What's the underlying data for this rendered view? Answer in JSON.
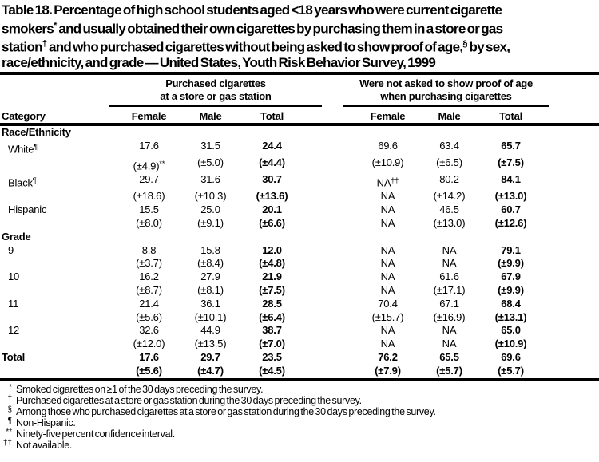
{
  "title": {
    "lines": [
      [
        {
          "t": "Table 18. Percentage of high school students aged <18 years who were current cigarette"
        }
      ],
      [
        {
          "t": "smokers"
        },
        {
          "sup": "*"
        },
        {
          "t": " and usually obtained their own cigarettes by purchasing them in a store or gas"
        }
      ],
      [
        {
          "t": "station"
        },
        {
          "sup": "†"
        },
        {
          "t": " and who purchased cigarettes without being asked to show proof of age,"
        },
        {
          "sup": "§"
        },
        {
          "t": " by sex,"
        }
      ],
      [
        {
          "t": "race/ethnicity, and grade — United States, Youth Risk Behavior Survey, 1999"
        }
      ]
    ]
  },
  "header": {
    "category_label": "Category",
    "groups": [
      {
        "line1": "Purchased cigarettes",
        "line2": "at a store or gas station",
        "columns": [
          "Female",
          "Male",
          "Total"
        ]
      },
      {
        "line1": "Were not asked to show proof of age",
        "line2": "when purchasing cigarettes",
        "columns": [
          "Female",
          "Male",
          "Total"
        ]
      }
    ]
  },
  "rows": [
    {
      "type": "section",
      "label": "Race/Ethnicity"
    },
    {
      "type": "data",
      "label": "White",
      "sup": "¶",
      "indent": true,
      "values": [
        "17.6",
        "31.5",
        "24.4",
        "69.6",
        "63.4",
        "65.7"
      ],
      "ci": [
        {
          "v": "(±4.9)",
          "sup": "**"
        },
        "(±5.0)",
        "(±4.4)",
        "(±10.9)",
        "(±6.5)",
        "(±7.5)"
      ]
    },
    {
      "type": "data",
      "label": "Black",
      "sup": "¶",
      "indent": true,
      "values": [
        "29.7",
        "31.6",
        "30.7",
        {
          "v": "NA",
          "sup": "††"
        },
        "80.2",
        "84.1"
      ],
      "ci": [
        "(±18.6)",
        "(±10.3)",
        "(±13.6)",
        "NA",
        "(±14.2)",
        "(±13.0)"
      ]
    },
    {
      "type": "data",
      "label": "Hispanic",
      "indent": true,
      "values": [
        "15.5",
        "25.0",
        "20.1",
        "NA",
        "46.5",
        "60.7"
      ],
      "ci": [
        "(±8.0)",
        "(±9.1)",
        "(±6.6)",
        "NA",
        "(±13.0)",
        "(±12.6)"
      ]
    },
    {
      "type": "section",
      "label": "Grade"
    },
    {
      "type": "data",
      "label": "9",
      "indent": true,
      "values": [
        "8.8",
        "15.8",
        "12.0",
        "NA",
        "NA",
        "79.1"
      ],
      "ci": [
        "(±3.7)",
        "(±8.4)",
        "(±4.8)",
        "NA",
        "NA",
        "(±9.9)"
      ]
    },
    {
      "type": "data",
      "label": "10",
      "indent": true,
      "values": [
        "16.2",
        "27.9",
        "21.9",
        "NA",
        "61.6",
        "67.9"
      ],
      "ci": [
        "(±8.7)",
        "(±8.1)",
        "(±7.5)",
        "NA",
        "(±17.1)",
        "(±9.9)"
      ]
    },
    {
      "type": "data",
      "label": "11",
      "indent": true,
      "values": [
        "21.4",
        "36.1",
        "28.5",
        "70.4",
        "67.1",
        "68.4"
      ],
      "ci": [
        "(±5.6)",
        "(±10.1)",
        "(±6.4)",
        "(±15.7)",
        "(±16.9)",
        "(±13.1)"
      ]
    },
    {
      "type": "data",
      "label": "12",
      "indent": true,
      "values": [
        "32.6",
        "44.9",
        "38.7",
        "NA",
        "NA",
        "65.0"
      ],
      "ci": [
        "(±12.0)",
        "(±13.5)",
        "(±7.0)",
        "NA",
        "NA",
        "(±10.9)"
      ]
    },
    {
      "type": "data",
      "label": "Total",
      "bold": true,
      "values": [
        "17.6",
        "29.7",
        "23.5",
        "76.2",
        "65.5",
        "69.6"
      ],
      "ci": [
        "(±5.6)",
        "(±4.7)",
        "(±4.5)",
        "(±7.9)",
        "(±5.7)",
        "(±5.7)"
      ]
    }
  ],
  "footnotes": [
    {
      "marker": "*",
      "text": "Smoked cigarettes on ≥1 of the 30 days preceding the survey."
    },
    {
      "marker": "†",
      "text": "Purchased cigarettes at a store or gas station during the 30 days preceding the survey."
    },
    {
      "marker": "§",
      "text": "Among those who purchased cigarettes at a store or gas station during the 30 days preceding the survey."
    },
    {
      "marker": "¶",
      "text": "Non-Hispanic."
    },
    {
      "marker": "**",
      "text": "Ninety-five percent confidence interval."
    },
    {
      "marker": "††",
      "text": "Not available."
    }
  ],
  "colors": {
    "text": "#000000",
    "background": "#ffffff",
    "rule": "#000000"
  }
}
